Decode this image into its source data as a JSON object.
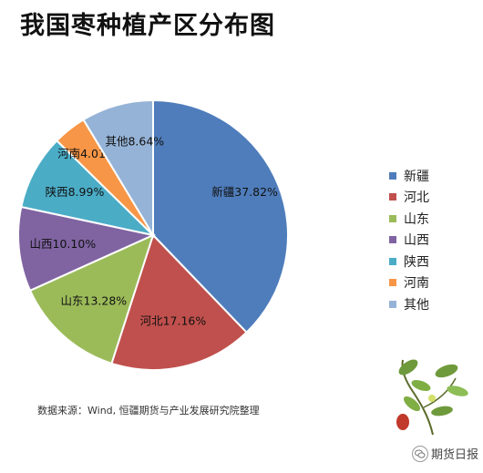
{
  "title": "我国枣种植产区分布图",
  "source": "数据来源：Wind, 恒疆期货与产业发展研究院整理",
  "watermark": "期货日报",
  "chart_data": {
    "type": "pie",
    "title": "我国枣种植产区分布图",
    "legend_position": "right",
    "slices": [
      {
        "name": "新疆",
        "value": 37.82,
        "label": "新疆37.82%",
        "color": "#4F7DBB"
      },
      {
        "name": "河北",
        "value": 17.16,
        "label": "河北17.16%",
        "color": "#C0504D"
      },
      {
        "name": "山东",
        "value": 13.28,
        "label": "山东13.28%",
        "color": "#9BBB59"
      },
      {
        "name": "山西",
        "value": 10.1,
        "label": "山西10.10%",
        "color": "#8064A2"
      },
      {
        "name": "陕西",
        "value": 8.99,
        "label": "陕西8.99%",
        "color": "#4BACC6"
      },
      {
        "name": "河南",
        "value": 4.01,
        "label": "河南4.01%",
        "color": "#F79646"
      },
      {
        "name": "其他",
        "value": 8.64,
        "label": "其他8.64%",
        "color": "#95B3D7"
      }
    ]
  }
}
